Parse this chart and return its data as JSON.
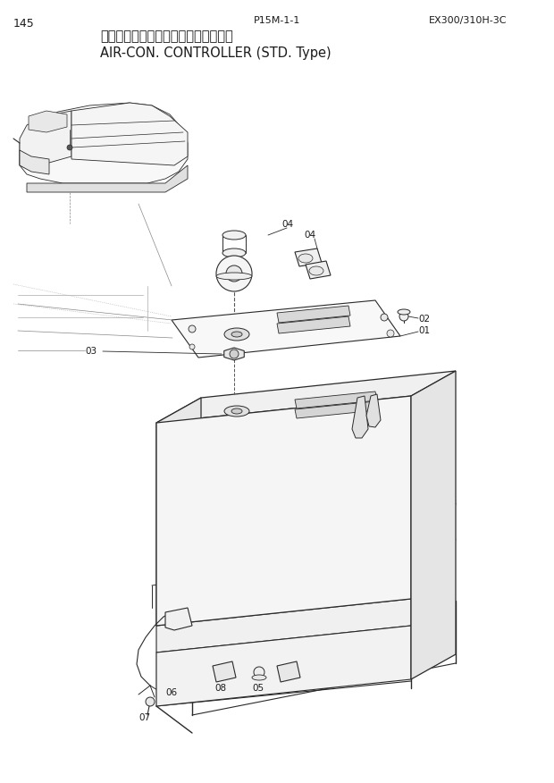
{
  "page_number": "145",
  "part_code": "P15M-1-1",
  "model": "EX300/310H-3C",
  "title_jp": "エアコンコントローラ（内気循環式）",
  "title_en": "AIR-CON. CONTROLLER (STD. Type)",
  "bg_color": "#ffffff",
  "line_color": "#2a2a2a",
  "text_color": "#1a1a1a",
  "fig_width": 6.2,
  "fig_height": 8.76,
  "dpi": 100
}
